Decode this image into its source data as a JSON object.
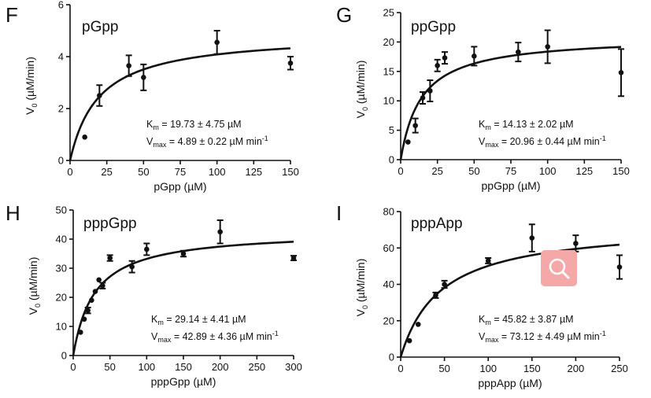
{
  "chart_data": [
    {
      "panel": "F",
      "title": "pGpp",
      "type": "scatter",
      "xlabel": "pGpp (µM)",
      "ylabel": "V0 (µM/min)",
      "xlim": [
        0,
        150
      ],
      "ylim": [
        0,
        6
      ],
      "xticks": [
        0,
        25,
        50,
        75,
        100,
        125,
        150
      ],
      "yticks": [
        0,
        2,
        4,
        6
      ],
      "points": [
        {
          "x": 10,
          "y": 0.9,
          "err": 0
        },
        {
          "x": 20,
          "y": 2.5,
          "err": 0.4
        },
        {
          "x": 40,
          "y": 3.65,
          "err": 0.4
        },
        {
          "x": 50,
          "y": 3.2,
          "err": 0.5
        },
        {
          "x": 100,
          "y": 4.55,
          "err": 0.45
        },
        {
          "x": 150,
          "y": 3.75,
          "err": 0.25
        }
      ],
      "fit": {
        "model": "Michaelis-Menten",
        "Km": 19.73,
        "Vmax": 4.89
      },
      "km_text": "= 19.73 ± 4.75 µM",
      "vmax_text": "= 4.89 ± 0.22 µM min"
    },
    {
      "panel": "G",
      "title": "ppGpp",
      "type": "scatter",
      "xlabel": "ppGpp (µM)",
      "ylabel": "V0 (µM/min)",
      "xlim": [
        0,
        150
      ],
      "ylim": [
        0,
        25
      ],
      "xticks": [
        0,
        25,
        50,
        75,
        100,
        125,
        150
      ],
      "yticks": [
        0,
        5,
        10,
        15,
        20,
        25
      ],
      "points": [
        {
          "x": 5,
          "y": 3.0,
          "err": 0
        },
        {
          "x": 10,
          "y": 5.8,
          "err": 1.2
        },
        {
          "x": 15,
          "y": 10.5,
          "err": 1.0
        },
        {
          "x": 20,
          "y": 11.7,
          "err": 1.8
        },
        {
          "x": 25,
          "y": 16.0,
          "err": 1.0
        },
        {
          "x": 30,
          "y": 17.3,
          "err": 1.0
        },
        {
          "x": 50,
          "y": 17.6,
          "err": 1.6
        },
        {
          "x": 80,
          "y": 18.3,
          "err": 1.6
        },
        {
          "x": 100,
          "y": 19.2,
          "err": 2.8
        },
        {
          "x": 150,
          "y": 14.8,
          "err": 4.0
        }
      ],
      "fit": {
        "model": "Michaelis-Menten",
        "Km": 14.13,
        "Vmax": 20.96
      },
      "km_text": "= 14.13 ± 2.02 µM",
      "vmax_text": "= 20.96 ± 0.44 µM min"
    },
    {
      "panel": "H",
      "title": "pppGpp",
      "type": "scatter",
      "xlabel": "pppGpp (µM)",
      "ylabel": "V0 (µM/min)",
      "xlim": [
        0,
        300
      ],
      "ylim": [
        0,
        50
      ],
      "xticks": [
        0,
        50,
        100,
        150,
        200,
        250,
        300
      ],
      "yticks": [
        0,
        10,
        20,
        30,
        40,
        50
      ],
      "points": [
        {
          "x": 10,
          "y": 8.0,
          "err": 0
        },
        {
          "x": 15,
          "y": 12.5,
          "err": 0
        },
        {
          "x": 20,
          "y": 15.5,
          "err": 1.0
        },
        {
          "x": 25,
          "y": 19.0,
          "err": 0
        },
        {
          "x": 30,
          "y": 22.0,
          "err": 0
        },
        {
          "x": 35,
          "y": 26.0,
          "err": 0
        },
        {
          "x": 40,
          "y": 24.0,
          "err": 1.0
        },
        {
          "x": 50,
          "y": 33.5,
          "err": 1.0
        },
        {
          "x": 80,
          "y": 30.5,
          "err": 2.0
        },
        {
          "x": 100,
          "y": 36.5,
          "err": 2.0
        },
        {
          "x": 150,
          "y": 35.0,
          "err": 1.0
        },
        {
          "x": 200,
          "y": 42.5,
          "err": 4.0
        },
        {
          "x": 300,
          "y": 33.5,
          "err": 0.8
        }
      ],
      "fit": {
        "model": "Michaelis-Menten",
        "Km": 29.14,
        "Vmax": 42.89
      },
      "km_text": "= 29.14 ± 4.41 µM",
      "vmax_text": "= 42.89 ± 4.36 µM min"
    },
    {
      "panel": "I",
      "title": "pppApp",
      "type": "scatter",
      "xlabel": "pppApp (µM)",
      "ylabel": "V0 (µM/min)",
      "xlim": [
        0,
        250
      ],
      "ylim": [
        0,
        80
      ],
      "xticks": [
        0,
        50,
        100,
        150,
        200,
        250
      ],
      "yticks": [
        0,
        20,
        40,
        60,
        80
      ],
      "points": [
        {
          "x": 10,
          "y": 9.0,
          "err": 0
        },
        {
          "x": 20,
          "y": 18.0,
          "err": 0
        },
        {
          "x": 40,
          "y": 34.0,
          "err": 1.5
        },
        {
          "x": 50,
          "y": 40.0,
          "err": 2.0
        },
        {
          "x": 100,
          "y": 53.0,
          "err": 1.5
        },
        {
          "x": 150,
          "y": 65.5,
          "err": 7.5
        },
        {
          "x": 200,
          "y": 62.5,
          "err": 4.5
        },
        {
          "x": 250,
          "y": 49.5,
          "err": 6.5
        }
      ],
      "fit": {
        "model": "Michaelis-Menten",
        "Km": 45.82,
        "Vmax": 73.12
      },
      "km_text": "= 45.82 ± 3.87 µM",
      "vmax_text": "= 73.12 ± 4.49 µM min"
    }
  ],
  "overlay": {
    "icon": "magnifier-icon",
    "color": "#f4a9a8"
  }
}
